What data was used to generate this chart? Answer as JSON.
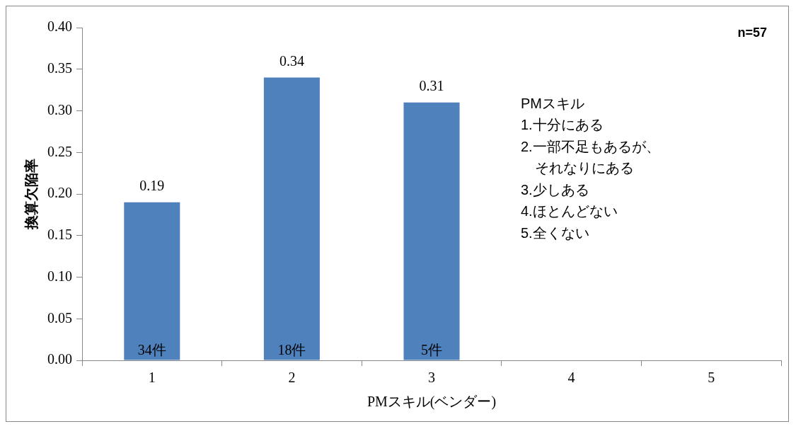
{
  "chart_data": {
    "type": "bar",
    "ylabel": "換算欠陥率",
    "xlabel": "PMスキル(ベンダー)",
    "categories": [
      "1",
      "2",
      "3",
      "4",
      "5"
    ],
    "values": [
      0.19,
      0.34,
      0.31,
      null,
      null
    ],
    "color": "#4f81bd",
    "ylim": [
      0,
      0.4
    ],
    "yticks": [
      {
        "value": 0,
        "label": "0.00"
      },
      {
        "value": 0.05,
        "label": "0.05"
      },
      {
        "value": 0.1,
        "label": "0.10"
      },
      {
        "value": 0.15,
        "label": "0.15"
      },
      {
        "value": 0.2,
        "label": "0.20"
      },
      {
        "value": 0.25,
        "label": "0.25"
      },
      {
        "value": 0.3,
        "label": "0.30"
      },
      {
        "value": 0.35,
        "label": "0.35"
      },
      {
        "value": 0.4,
        "label": "0.40"
      }
    ],
    "grid": false,
    "legend": false,
    "data_labels": true,
    "annotations": [
      "n=57",
      "PMスキル\n1.十分にある\n2.一部不足もあるが、それなりにある\n3.少しある\n4.ほとんどない\n5.全くない",
      {
        "text": "34件",
        "x": "1",
        "y": 0
      },
      {
        "text": "18件",
        "x": "2",
        "y": 0
      },
      {
        "text": "5件",
        "x": "3",
        "y": 0
      }
    ]
  }
}
